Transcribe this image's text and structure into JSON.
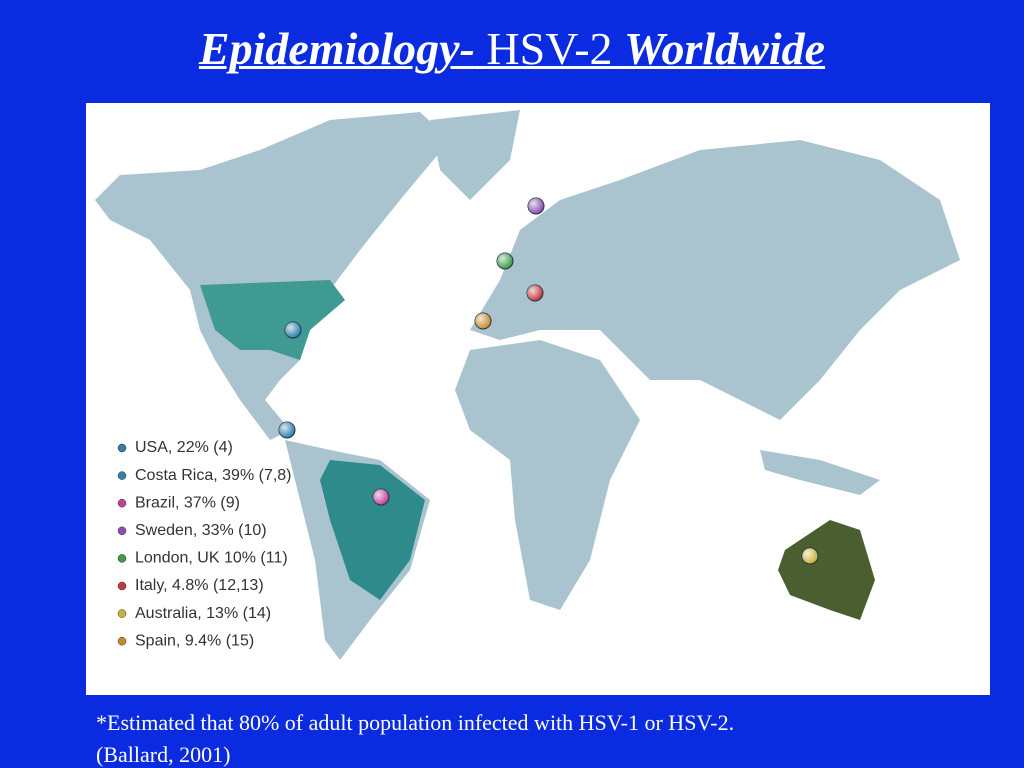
{
  "title": {
    "part1": "Epidemiology-",
    "part2": "HSV-2",
    "part3": "Worldwide"
  },
  "legend": [
    {
      "label": "USA, 22% (4)",
      "color": "#2f7fa8"
    },
    {
      "label": "Costa Rica, 39% (7,8)",
      "color": "#2f7fa8"
    },
    {
      "label": "Brazil, 37% (9)",
      "color": "#c0429a"
    },
    {
      "label": "Sweden, 33% (10)",
      "color": "#8a4fb0"
    },
    {
      "label": "London, UK 10% (11)",
      "color": "#3c9a4a"
    },
    {
      "label": "Italy, 4.8% (12,13)",
      "color": "#c23b3b"
    },
    {
      "label": "Australia, 13% (14)",
      "color": "#c8b43a"
    },
    {
      "label": "Spain, 9.4% (15)",
      "color": "#c98a2e"
    }
  ],
  "footnote": {
    "line1": "*Estimated that 80% of adult population infected with HSV-1 or HSV-2.",
    "line2": "(Ballard, 2001)"
  }
}
